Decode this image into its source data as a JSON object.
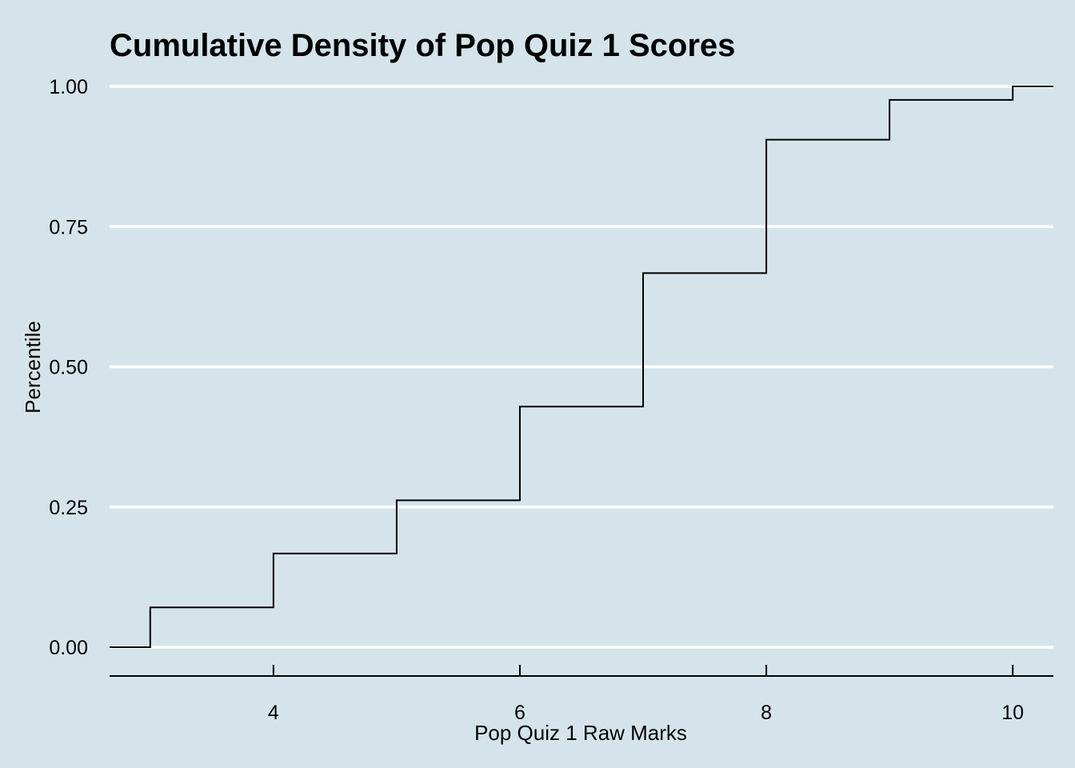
{
  "chart_data": {
    "type": "line",
    "subtype": "step",
    "title": "Cumulative Density of Pop Quiz 1 Scores",
    "xlabel": "Pop Quiz 1 Raw Marks",
    "ylabel": "Percentile",
    "xlim": [
      2.67,
      10.33
    ],
    "ylim": [
      -0.05,
      1.0
    ],
    "x_ticks": [
      4,
      6,
      8,
      10
    ],
    "x_tick_labels": [
      "4",
      "6",
      "8",
      "10"
    ],
    "y_ticks": [
      0,
      0.25,
      0.5,
      0.75,
      1.0
    ],
    "y_tick_labels": [
      "0.00",
      "0.25",
      "0.50",
      "0.75",
      "1.00"
    ],
    "grid": "horizontal-major",
    "line_color": "#000000",
    "background_color": "#d5e4eb",
    "grid_color": "#ffffff",
    "series": [
      {
        "x": [
          3,
          4,
          5,
          6,
          7,
          8,
          9,
          10
        ],
        "values": [
          0.071,
          0.167,
          0.262,
          0.429,
          0.667,
          0.905,
          0.976,
          1.0
        ]
      }
    ]
  }
}
